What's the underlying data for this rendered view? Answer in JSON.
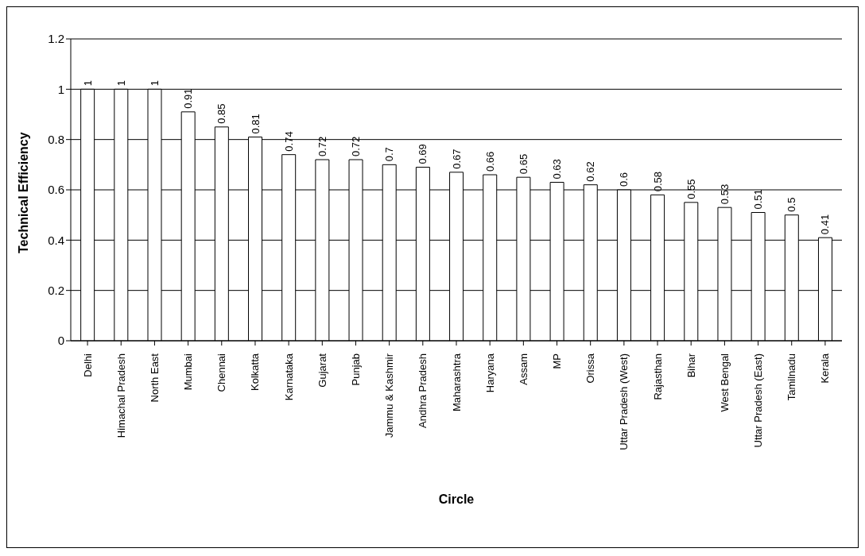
{
  "chart_data": {
    "type": "bar",
    "xlabel": "Circle",
    "ylabel": "Technical Efficiency",
    "categories": [
      "Delhi",
      "Himachal Pradesh",
      "North East",
      "Mumbai",
      "Chennai",
      "Kolkatta",
      "Karnataka",
      "Gujarat",
      "Punjab",
      "Jammu & Kashmir",
      "Andhra Pradesh",
      "Maharashtra",
      "Haryana",
      "Assam",
      "MP",
      "Orissa",
      "Uttar Pradesh (West)",
      "Rajasthan",
      "Bihar",
      "West Bengal",
      "Uttar Pradesh (East)",
      "Tamilnadu",
      "Kerala"
    ],
    "values": [
      1,
      1,
      1,
      0.91,
      0.85,
      0.81,
      0.74,
      0.72,
      0.72,
      0.7,
      0.69,
      0.67,
      0.66,
      0.65,
      0.63,
      0.62,
      0.6,
      0.58,
      0.55,
      0.53,
      0.51,
      0.5,
      0.41
    ],
    "color": "#ffffff",
    "ylim": [
      0,
      1.2
    ],
    "yticks": [
      0,
      0.2,
      0.4,
      0.6,
      0.8,
      1,
      1.2
    ],
    "grid": "y",
    "data_labels": true
  }
}
